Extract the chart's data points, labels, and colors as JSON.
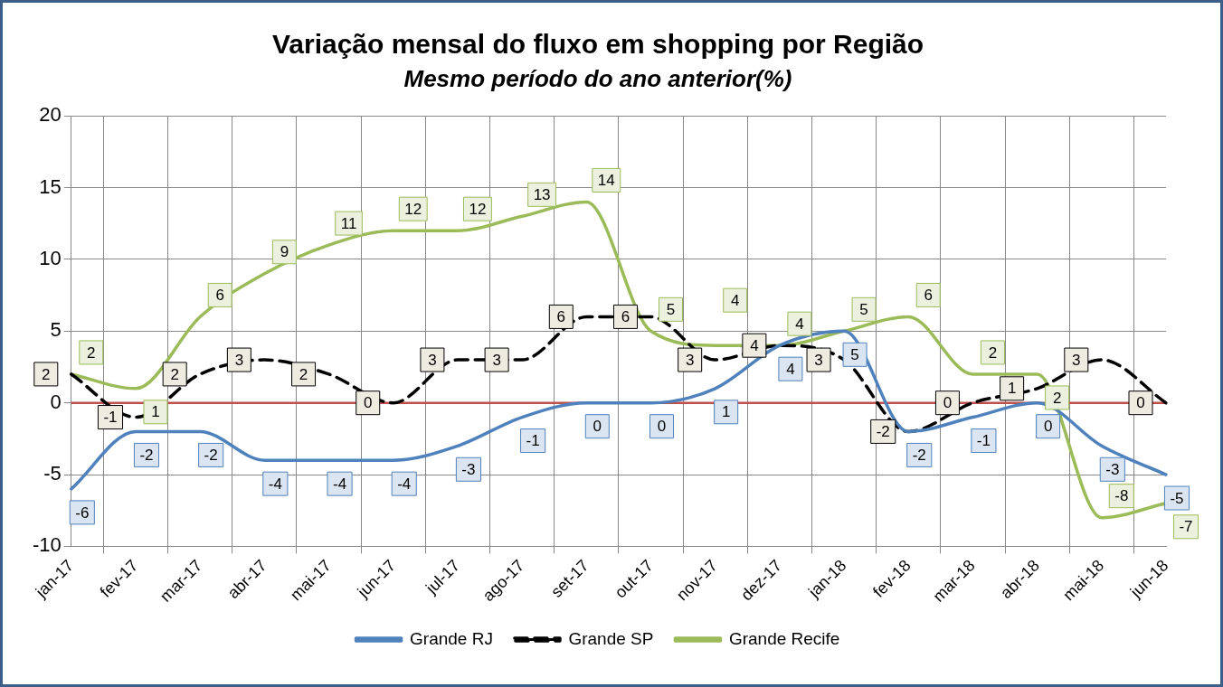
{
  "chart_data": {
    "type": "line",
    "title": "Variação mensal do fluxo em shopping por Região",
    "subtitle": "Mesmo período do ano anterior(%)",
    "categories": [
      "jan-17",
      "fev-17",
      "mar-17",
      "abr-17",
      "mai-17",
      "jun-17",
      "jul-17",
      "ago-17",
      "set-17",
      "out-17",
      "nov-17",
      "dez-17",
      "jan-18",
      "fev-18",
      "mar-18",
      "abr-18",
      "mai-18",
      "jun-18"
    ],
    "series": [
      {
        "name": "Grande RJ",
        "color": "#4f81bd",
        "values": [
          -6,
          -2,
          -2,
          -4,
          -4,
          -4,
          -3,
          -1,
          0,
          0,
          1,
          4,
          5,
          -2,
          -1,
          0,
          -3,
          -5
        ]
      },
      {
        "name": "Grande SP",
        "color": "#000000",
        "line_style": "dashed",
        "values": [
          2,
          -1,
          2,
          3,
          2,
          0,
          3,
          3,
          6,
          6,
          3,
          4,
          3,
          -2,
          0,
          1,
          3,
          0
        ]
      },
      {
        "name": "Grande Recife",
        "color": "#9bbb59",
        "values": [
          2,
          1,
          6,
          9,
          11,
          12,
          12,
          13,
          14,
          5,
          4,
          4,
          5,
          6,
          2,
          2,
          -8,
          -7
        ]
      }
    ],
    "ylim": [
      -10,
      20
    ],
    "yticks": [
      -10,
      -5,
      0,
      5,
      10,
      15,
      20
    ],
    "grid": true,
    "legend": "bottom",
    "data_labels": true,
    "marker": "none",
    "line_style": "solid",
    "ref_lines": [
      {
        "axis": "y",
        "value": 0,
        "color": "#c0504d"
      }
    ]
  }
}
